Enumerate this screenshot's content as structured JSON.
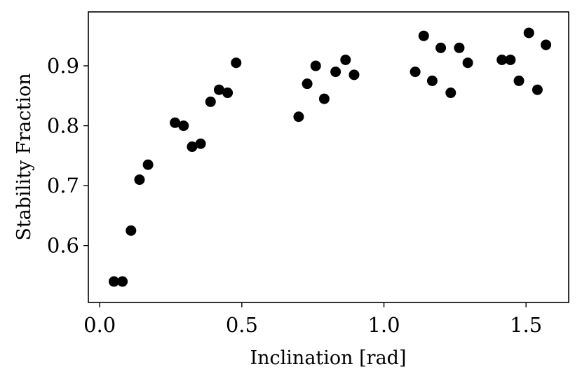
{
  "chart_data": {
    "type": "scatter",
    "xlabel": "Inclination [rad]",
    "ylabel": "Stability Fraction",
    "xlim": [
      -0.04,
      1.65
    ],
    "ylim": [
      0.505,
      0.99
    ],
    "xticks": [
      0.0,
      0.5,
      1.0,
      1.5
    ],
    "xtick_labels": [
      "0.0",
      "0.5",
      "1.0",
      "1.5"
    ],
    "yticks": [
      0.6,
      0.7,
      0.8,
      0.9
    ],
    "ytick_labels": [
      "0.6",
      "0.7",
      "0.8",
      "0.9"
    ],
    "grid": false,
    "marker_color": "#000000",
    "points": [
      {
        "x": 0.05,
        "y": 0.54
      },
      {
        "x": 0.08,
        "y": 0.54
      },
      {
        "x": 0.11,
        "y": 0.625
      },
      {
        "x": 0.14,
        "y": 0.71
      },
      {
        "x": 0.17,
        "y": 0.735
      },
      {
        "x": 0.265,
        "y": 0.805
      },
      {
        "x": 0.295,
        "y": 0.8
      },
      {
        "x": 0.325,
        "y": 0.765
      },
      {
        "x": 0.355,
        "y": 0.77
      },
      {
        "x": 0.39,
        "y": 0.84
      },
      {
        "x": 0.42,
        "y": 0.86
      },
      {
        "x": 0.45,
        "y": 0.855
      },
      {
        "x": 0.48,
        "y": 0.905
      },
      {
        "x": 0.7,
        "y": 0.815
      },
      {
        "x": 0.73,
        "y": 0.87
      },
      {
        "x": 0.76,
        "y": 0.9
      },
      {
        "x": 0.79,
        "y": 0.845
      },
      {
        "x": 0.83,
        "y": 0.89
      },
      {
        "x": 0.865,
        "y": 0.91
      },
      {
        "x": 0.895,
        "y": 0.885
      },
      {
        "x": 1.11,
        "y": 0.89
      },
      {
        "x": 1.14,
        "y": 0.95
      },
      {
        "x": 1.17,
        "y": 0.875
      },
      {
        "x": 1.2,
        "y": 0.93
      },
      {
        "x": 1.235,
        "y": 0.855
      },
      {
        "x": 1.265,
        "y": 0.93
      },
      {
        "x": 1.295,
        "y": 0.905
      },
      {
        "x": 1.415,
        "y": 0.91
      },
      {
        "x": 1.445,
        "y": 0.91
      },
      {
        "x": 1.475,
        "y": 0.875
      },
      {
        "x": 1.51,
        "y": 0.955
      },
      {
        "x": 1.54,
        "y": 0.86
      },
      {
        "x": 1.57,
        "y": 0.935
      }
    ]
  }
}
